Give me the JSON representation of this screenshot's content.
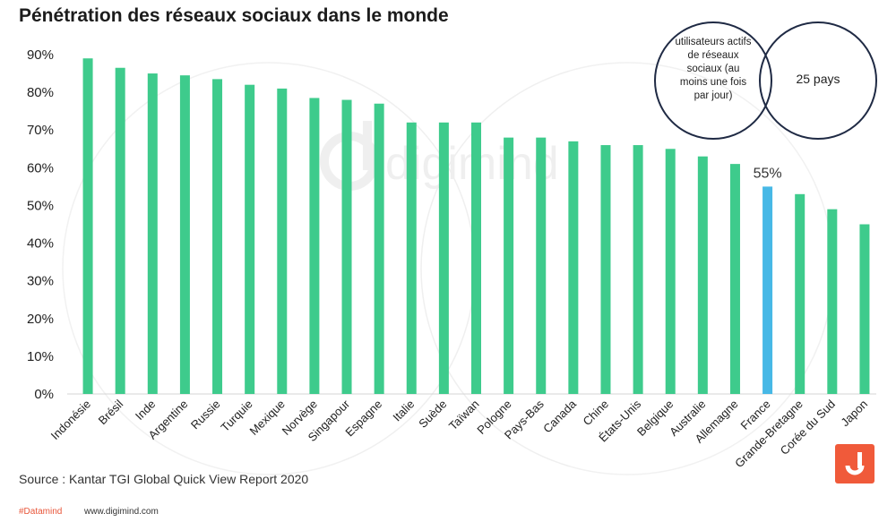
{
  "title": "Pénétration des réseaux sociaux dans le monde",
  "source": "Source : Kantar TGI Global Quick View Report 2020",
  "footer": {
    "hashtag": "#Datamind",
    "url": "www.digimind.com"
  },
  "watermark": "digimind",
  "venn": {
    "left_text": "utilisateurs actifs de réseaux sociaux (au moins une fois par jour)",
    "right_text": "25 pays"
  },
  "colors": {
    "bar": "#3ecb8c",
    "highlight": "#47b8e6",
    "logo": "#f05a3a"
  },
  "chart_data": {
    "type": "bar",
    "title": "Pénétration des réseaux sociaux dans le monde",
    "xlabel": "",
    "ylabel": "",
    "ylim": [
      0,
      90
    ],
    "yticks": [
      "0%",
      "10%",
      "20%",
      "30%",
      "40%",
      "50%",
      "60%",
      "70%",
      "80%",
      "90%"
    ],
    "grid": false,
    "categories": [
      "Indonésie",
      "Brésil",
      "Inde",
      "Argentine",
      "Russie",
      "Turquie",
      "Mexique",
      "Norvège",
      "Singapour",
      "Espagne",
      "Italie",
      "Suède",
      "Taïwan",
      "Pologne",
      "Pays-Bas",
      "Canada",
      "Chine",
      "États-Unis",
      "Belgique",
      "Australie",
      "Allemagne",
      "France",
      "Grande-Bretagne",
      "Corée du Sud",
      "Japon"
    ],
    "values": [
      89,
      86.5,
      85,
      84.5,
      83.5,
      82,
      81,
      78.5,
      78,
      77,
      72,
      72,
      72,
      68,
      68,
      67,
      66,
      66,
      65,
      63,
      61,
      55,
      53,
      49,
      45
    ],
    "highlight_index": 21,
    "annotations": [
      {
        "category": "France",
        "text": "55%"
      }
    ]
  }
}
